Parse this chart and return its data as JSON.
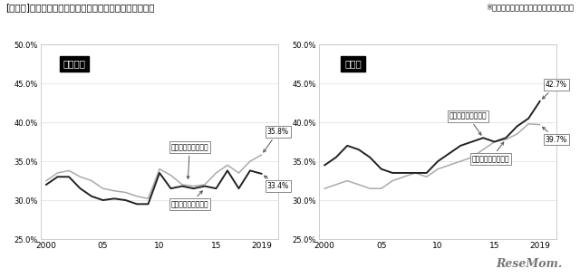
{
  "title": "[図表６]　医学部志願者、入学者に占める女子比率の推移",
  "subtitle": "※文部科学省「学校基本調査」より作成。",
  "years": [
    2000,
    2001,
    2002,
    2003,
    2004,
    2005,
    2006,
    2007,
    2008,
    2009,
    2010,
    2011,
    2012,
    2013,
    2014,
    2015,
    2016,
    2017,
    2018,
    2019
  ],
  "kokoritsu_shigansya": [
    32.5,
    33.5,
    33.8,
    33.0,
    32.5,
    31.5,
    31.2,
    31.0,
    30.5,
    30.2,
    34.0,
    33.2,
    32.0,
    31.8,
    32.0,
    33.5,
    34.5,
    33.5,
    35.0,
    35.8
  ],
  "kokoritsu_nyugakusya": [
    32.0,
    33.0,
    33.0,
    31.5,
    30.5,
    30.0,
    30.2,
    30.0,
    29.5,
    29.5,
    33.5,
    31.5,
    31.8,
    31.5,
    31.8,
    31.5,
    33.8,
    31.5,
    33.8,
    33.4
  ],
  "shiritu_shigansya": [
    34.5,
    35.5,
    37.0,
    36.5,
    35.5,
    34.0,
    33.5,
    33.5,
    33.5,
    33.5,
    35.0,
    36.0,
    37.0,
    37.5,
    38.0,
    37.5,
    38.0,
    39.5,
    40.5,
    42.7
  ],
  "shiritu_nyugakusya": [
    31.5,
    32.0,
    32.5,
    32.0,
    31.5,
    31.5,
    32.5,
    33.0,
    33.5,
    33.0,
    34.0,
    34.5,
    35.0,
    35.5,
    36.5,
    37.5,
    37.8,
    38.5,
    39.8,
    39.7
  ],
  "ylim": [
    25.0,
    50.0
  ],
  "yticks": [
    25.0,
    30.0,
    35.0,
    40.0,
    45.0,
    50.0
  ],
  "xticks": [
    2000,
    2005,
    2010,
    2015,
    2019
  ],
  "color_shigansya": "#aaaaaa",
  "color_nyugakusya": "#222222",
  "label_shigansya": "女子比率（志願者）",
  "label_nyugakusya": "女子比率（入学者）",
  "label_kokoritsu": "国公立大",
  "label_shiritu": "私立大",
  "end_label_kokoritsu_shigan": "35.8%",
  "end_label_kokoritsu_nyuga": "33.4%",
  "end_label_shiritu_shigan": "42.7%",
  "end_label_shiritu_nyuga": "39.7%"
}
